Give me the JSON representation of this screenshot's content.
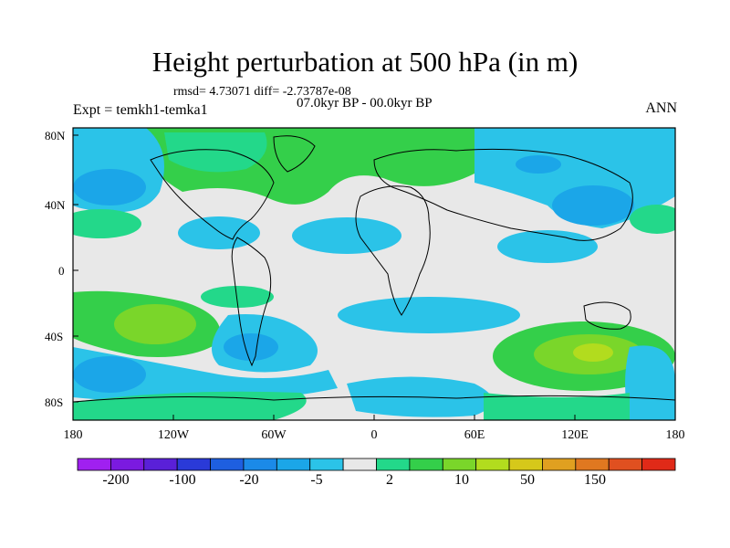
{
  "title": "Height perturbation at 500 hPa (in m)",
  "subtitle": "rmsd= 4.73071 diff= -2.73787e-08",
  "period": "07.0kyr BP - 00.0kyr BP",
  "left_label": "Expt = temkh1-temka1",
  "right_label": "ANN",
  "map": {
    "lat_labels": [
      "80N",
      "40N",
      "0",
      "40S",
      "80S"
    ],
    "lon_labels": [
      "180",
      "120W",
      "60W",
      "0",
      "60E",
      "120E",
      "180"
    ],
    "colorbar": {
      "tick_labels": [
        "-200",
        "-100",
        "-20",
        "-5",
        "2",
        "10",
        "50",
        "150"
      ],
      "colors": [
        "#a020f0",
        "#7b1ae0",
        "#5a20d8",
        "#2a3ad8",
        "#1e5fe0",
        "#1b8ae8",
        "#1ba6e8",
        "#2bc3e8",
        "#e8e8e8",
        "#23d88a",
        "#34cf4a",
        "#7ad62a",
        "#b2dc1e",
        "#d6c81a",
        "#e0a020",
        "#e07820",
        "#e05020",
        "#e02a18"
      ]
    }
  }
}
